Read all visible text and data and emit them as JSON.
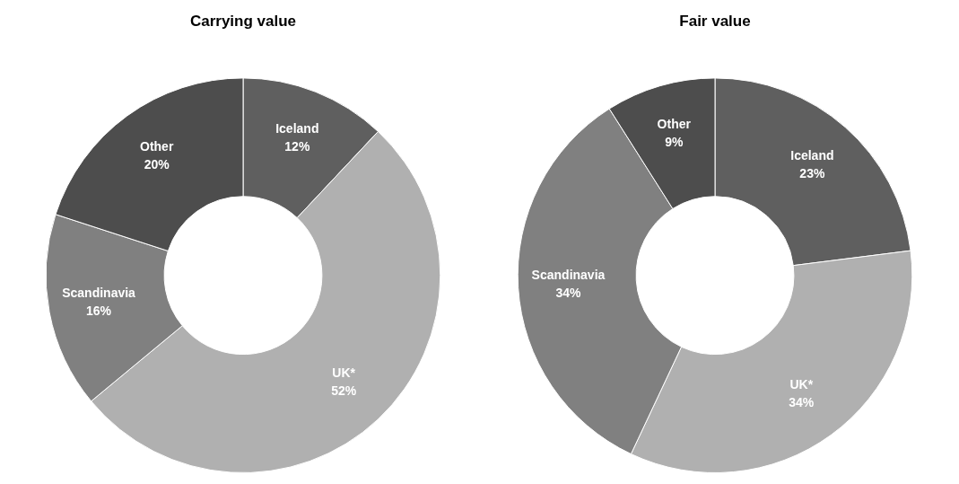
{
  "chart_data": [
    {
      "type": "donut",
      "title": "Carrying value",
      "categories": [
        "Iceland",
        "UK*",
        "Scandinavia",
        "Other"
      ],
      "values": [
        12,
        52,
        16,
        20
      ],
      "colors": [
        "#5f5f5f",
        "#b0b0b0",
        "#808080",
        "#4d4d4d"
      ],
      "value_labels": [
        "12%",
        "52%",
        "16%",
        "20%"
      ]
    },
    {
      "type": "donut",
      "title": "Fair value",
      "categories": [
        "Iceland",
        "UK*",
        "Scandinavia",
        "Other"
      ],
      "values": [
        23,
        34,
        34,
        9
      ],
      "colors": [
        "#5f5f5f",
        "#b0b0b0",
        "#808080",
        "#4d4d4d"
      ],
      "value_labels": [
        "23%",
        "34%",
        "34%",
        "9%"
      ]
    }
  ]
}
